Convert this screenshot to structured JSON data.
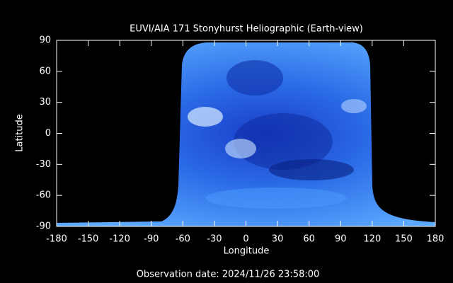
{
  "chart_data": {
    "type": "image",
    "title": "EUVI/AIA 171 Stonyhurst Heliographic (Earth-view)",
    "x_label": "Longitude",
    "y_label": "Latitude",
    "xlim": [
      -180,
      180
    ],
    "ylim": [
      -90,
      90
    ],
    "xticks": [
      -180,
      -150,
      -120,
      -90,
      -60,
      -30,
      0,
      30,
      60,
      90,
      120,
      150,
      180
    ],
    "yticks": [
      -90,
      -60,
      -30,
      0,
      30,
      60,
      90
    ]
  },
  "footer": "Observation date: 2024/11/26 23:58:00"
}
